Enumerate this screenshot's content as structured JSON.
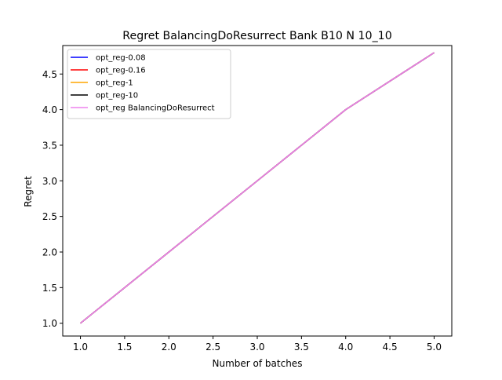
{
  "chart_data": {
    "type": "line",
    "title": "Regret BalancingDoResurrect Bank B10 N 10_10",
    "xlabel": "Number of batches",
    "ylabel": "Regret",
    "xlim": [
      0.8,
      5.2
    ],
    "ylim": [
      0.82,
      4.9
    ],
    "xticks": [
      1.0,
      1.5,
      2.0,
      2.5,
      3.0,
      3.5,
      4.0,
      4.5,
      5.0
    ],
    "yticks": [
      1.0,
      1.5,
      2.0,
      2.5,
      3.0,
      3.5,
      4.0,
      4.5
    ],
    "xtick_labels": [
      "1.0",
      "1.5",
      "2.0",
      "2.5",
      "3.0",
      "3.5",
      "4.0",
      "4.5",
      "5.0"
    ],
    "ytick_labels": [
      "1.0",
      "1.5",
      "2.0",
      "2.5",
      "3.0",
      "3.5",
      "4.0",
      "4.5"
    ],
    "grid": false,
    "legend_position": "top-left",
    "x": [
      1,
      2,
      3,
      4,
      5
    ],
    "series": [
      {
        "name": "opt_reg-0.08",
        "color": "#0000ff",
        "values": [
          1.0,
          2.0,
          3.0,
          4.0,
          4.8
        ]
      },
      {
        "name": "opt_reg-0.16",
        "color": "#ff0000",
        "values": [
          1.0,
          2.0,
          3.0,
          4.0,
          4.8
        ]
      },
      {
        "name": "opt_reg-1",
        "color": "#ffa500",
        "values": [
          1.0,
          2.0,
          3.0,
          4.0,
          4.8
        ]
      },
      {
        "name": "opt_reg-10",
        "color": "#000000",
        "values": [
          1.0,
          2.0,
          3.0,
          4.0,
          4.8
        ]
      },
      {
        "name": "opt_reg BalancingDoResurrect",
        "color": "#ee82ee",
        "values": [
          1.0,
          2.0,
          3.0,
          4.0,
          4.8
        ]
      }
    ]
  }
}
